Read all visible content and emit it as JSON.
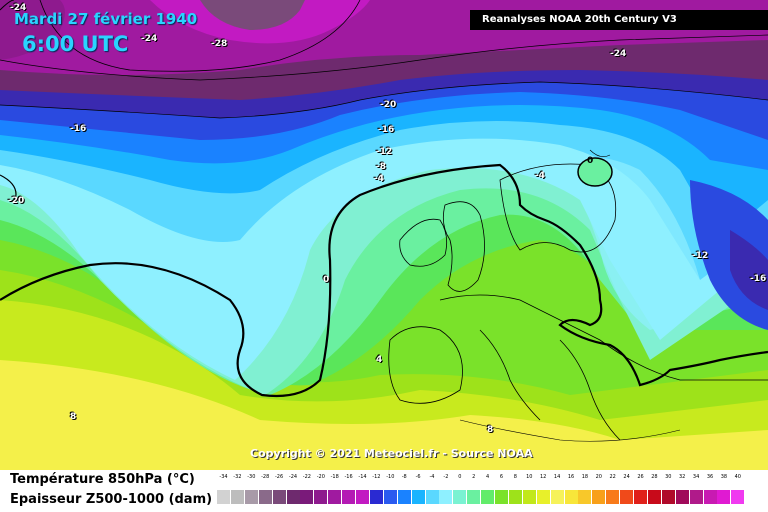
{
  "header": {
    "date": "Mardi 27 février 1940",
    "time": "6:00 UTC",
    "source": "Reanalyses NOAA 20th Century V3"
  },
  "footer": {
    "copyright": "Copyright © 2021 Meteociel.fr - Source NOAA"
  },
  "legend": {
    "line1": "Température 850hPa (°C)",
    "line2": "Epaisseur Z500-1000 (dam)",
    "ticks": [
      "-34",
      "-32",
      "-30",
      "-28",
      "-26",
      "-24",
      "-22",
      "-20",
      "-18",
      "-16",
      "-14",
      "-12",
      "-10",
      "-8",
      "-6",
      "-4",
      "-2",
      "0",
      "2",
      "4",
      "6",
      "8",
      "10",
      "12",
      "14",
      "16",
      "18",
      "20",
      "22",
      "24",
      "26",
      "28",
      "30",
      "32",
      "34",
      "36",
      "38",
      "40"
    ],
    "colors": [
      "#d2d2d2",
      "#bdbdbd",
      "#a89aa8",
      "#8a6a8a",
      "#7a4a7a",
      "#6e2a6e",
      "#7a1a7a",
      "#8e1a8e",
      "#a01aa0",
      "#b41ab4",
      "#c21ac2",
      "#2a2ad2",
      "#2a5af0",
      "#1a82ff",
      "#1ab4ff",
      "#5ad8ff",
      "#8ef0ff",
      "#7af2d2",
      "#6af0a0",
      "#62ec6a",
      "#7ae22a",
      "#9ee21a",
      "#c2e81a",
      "#e8f02a",
      "#f6f25a",
      "#f8e63a",
      "#f8c82a",
      "#f8a01a",
      "#f87a1a",
      "#f04a1a",
      "#e0201a",
      "#c80a1a",
      "#b00a2a",
      "#a00a5a",
      "#b01a8a",
      "#c81ab2",
      "#e01ad2",
      "#f03af0"
    ]
  },
  "contour_labels": [
    {
      "text": "-24",
      "tone": "light"
    },
    {
      "text": "-24",
      "tone": "light"
    },
    {
      "text": "-28",
      "tone": "light"
    },
    {
      "text": "-24",
      "tone": "light"
    },
    {
      "text": "-20",
      "tone": "light"
    },
    {
      "text": "-16",
      "tone": "light"
    },
    {
      "text": "-16",
      "tone": "light"
    },
    {
      "text": "-12",
      "tone": "light"
    },
    {
      "text": "-8",
      "tone": "light"
    },
    {
      "text": "-4",
      "tone": "light"
    },
    {
      "text": "-20",
      "tone": "light"
    },
    {
      "text": "0",
      "tone": "light"
    },
    {
      "text": "-4",
      "tone": "light"
    },
    {
      "text": "0",
      "tone": "dark"
    },
    {
      "text": "-12",
      "tone": "light"
    },
    {
      "text": "-16",
      "tone": "light"
    },
    {
      "text": "4",
      "tone": "light"
    },
    {
      "text": "8",
      "tone": "light"
    },
    {
      "text": "8",
      "tone": "light"
    }
  ]
}
